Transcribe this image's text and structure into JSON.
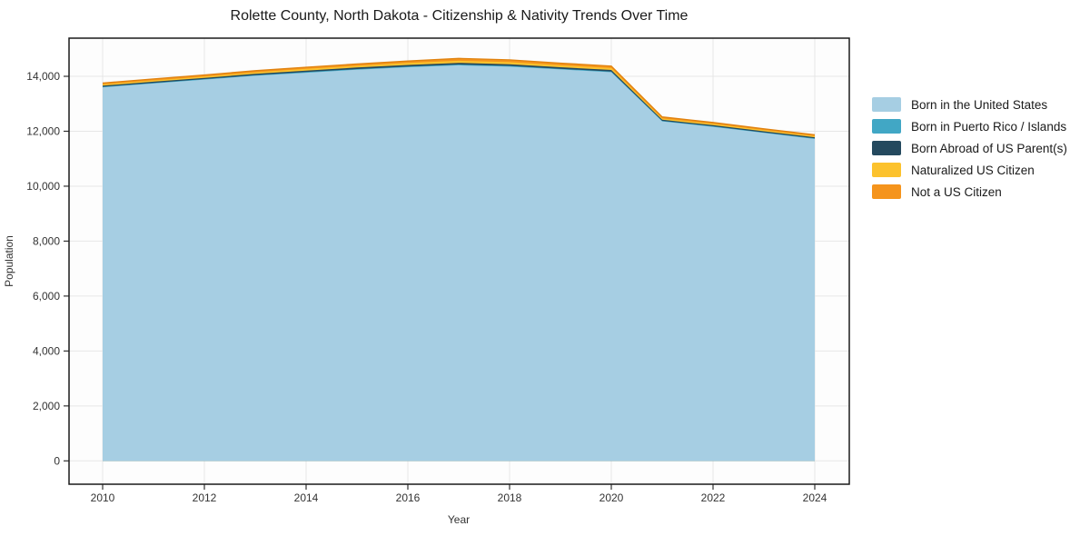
{
  "chart_data": {
    "type": "area",
    "stacked": true,
    "title": "Rolette County, North Dakota - Citizenship & Nativity Trends Over Time",
    "xlabel": "Year",
    "ylabel": "Population",
    "x": [
      2010,
      2011,
      2012,
      2013,
      2014,
      2015,
      2016,
      2017,
      2018,
      2019,
      2020,
      2021,
      2022,
      2023,
      2024
    ],
    "series": [
      {
        "name": "Born in the United States",
        "color": "#a6cee3",
        "values": [
          13600,
          13740,
          13880,
          14020,
          14130,
          14240,
          14330,
          14400,
          14350,
          14250,
          14150,
          12360,
          12160,
          11940,
          11720
        ]
      },
      {
        "name": "Born in Puerto Rico / Islands",
        "color": "#41a7c5",
        "values": [
          20,
          20,
          20,
          20,
          25,
          25,
          25,
          30,
          30,
          25,
          25,
          20,
          20,
          20,
          20
        ]
      },
      {
        "name": "Born Abroad of US Parent(s)",
        "color": "#24495e",
        "values": [
          40,
          45,
          45,
          50,
          55,
          55,
          60,
          60,
          60,
          55,
          55,
          40,
          40,
          40,
          40
        ]
      },
      {
        "name": "Naturalized US Citizen",
        "color": "#fcc22d",
        "values": [
          45,
          45,
          50,
          55,
          60,
          65,
          70,
          75,
          75,
          70,
          70,
          45,
          50,
          45,
          45
        ]
      },
      {
        "name": "Not a US Citizen",
        "color": "#f5941c",
        "values": [
          50,
          55,
          55,
          60,
          60,
          65,
          70,
          85,
          85,
          80,
          75,
          55,
          50,
          45,
          45
        ]
      }
    ],
    "x_ticks": [
      2010,
      2012,
      2014,
      2016,
      2018,
      2020,
      2022,
      2024
    ],
    "y_ticks": [
      0,
      2000,
      4000,
      6000,
      8000,
      10000,
      12000,
      14000
    ],
    "y_tick_labels": [
      "0",
      "2,000",
      "4,000",
      "6,000",
      "8,000",
      "10,000",
      "12,000",
      "14,000"
    ],
    "xlim": [
      2009.3,
      2024.7
    ],
    "ylim": [
      -850,
      15400
    ],
    "grid": true,
    "legend_position": "right"
  }
}
